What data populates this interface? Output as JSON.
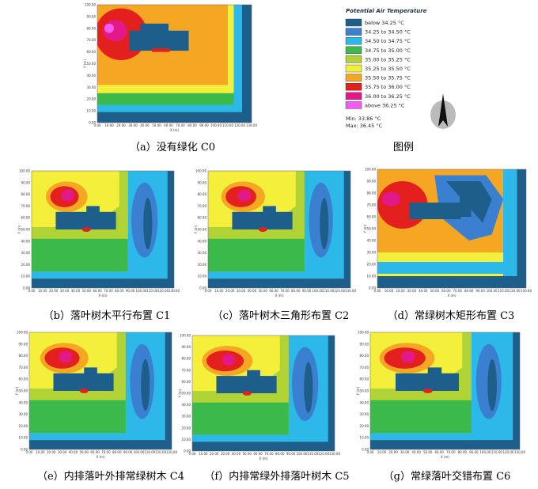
{
  "axis": {
    "xlabel": "X (m)",
    "ylabel": "Y (m)",
    "xticks": [
      "0.00",
      "10.00",
      "20.00",
      "30.00",
      "40.00",
      "50.00",
      "60.00",
      "70.00",
      "80.00",
      "90.00",
      "100.00",
      "110.00",
      "120.00",
      "130.00"
    ],
    "yticks": [
      "0.00",
      "10.00",
      "20.00",
      "30.00",
      "40.00",
      "50.00",
      "60.00",
      "70.00",
      "80.00",
      "90.00",
      "100.00"
    ]
  },
  "panels": [
    {
      "caption": "（a）没有绿化 C0"
    },
    {
      "caption": "（b）落叶树木平行布置 C1"
    },
    {
      "caption": "（c）落叶树木三角形布置 C2"
    },
    {
      "caption": "（d）常绿树木矩形布置 C3"
    },
    {
      "caption": "（e）内排落叶外排常绿树木 C4"
    },
    {
      "caption": "（f）内排常绿外排落叶树木 C5"
    },
    {
      "caption": "（g）常绿落叶交错布置 C6"
    }
  ],
  "legend": {
    "title": "Potential Air Temperature",
    "caption": "图例",
    "entries": [
      {
        "label": "below 34.25 °C",
        "color": "#1d5f8a"
      },
      {
        "label": "34.25 to 34.50 °C",
        "color": "#3a7fd0"
      },
      {
        "label": "34.50 to 34.75 °C",
        "color": "#2cb9ea"
      },
      {
        "label": "34.75 to 35.00 °C",
        "color": "#3cb94b"
      },
      {
        "label": "35.00 to 35.25 °C",
        "color": "#b2d335"
      },
      {
        "label": "35.25 to 35.50 °C",
        "color": "#f3ef3a"
      },
      {
        "label": "35.50 to 35.75 °C",
        "color": "#f5a623"
      },
      {
        "label": "35.75 to 36.00 °C",
        "color": "#e4201f"
      },
      {
        "label": "36.00 to 36.25 °C",
        "color": "#e3198b"
      },
      {
        "label": "above 36.25 °C",
        "color": "#f25cf0"
      }
    ],
    "min": "Min: 33.86 °C",
    "max": "Max: 36.45 °C"
  }
}
